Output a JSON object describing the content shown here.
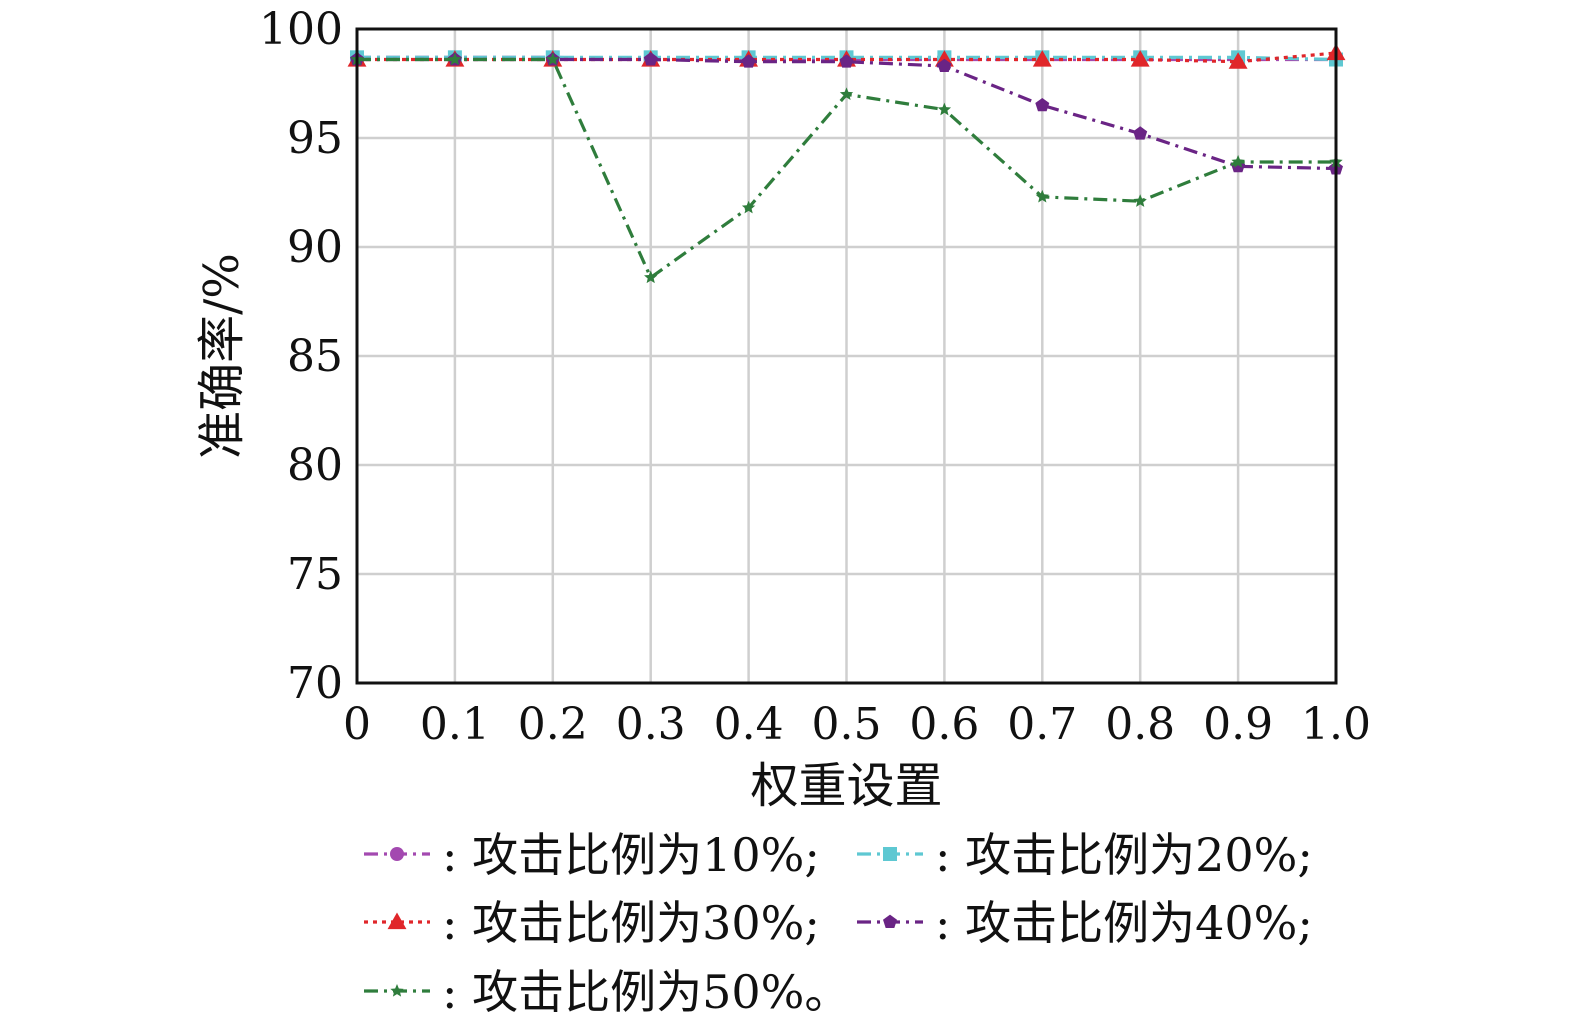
{
  "chart_data": {
    "type": "line",
    "title": "",
    "xlabel": "权重设置",
    "ylabel": "准确率/%",
    "x": [
      0,
      0.1,
      0.2,
      0.3,
      0.4,
      0.5,
      0.6,
      0.7,
      0.8,
      0.9,
      1.0
    ],
    "x_tick_labels": [
      "0",
      "0.1",
      "0.2",
      "0.3",
      "0.4",
      "0.5",
      "0.6",
      "0.7",
      "0.8",
      "0.9",
      "1.0"
    ],
    "y_ticks": [
      70,
      75,
      80,
      85,
      90,
      95,
      100
    ],
    "y_tick_labels": [
      "70",
      "75",
      "80",
      "85",
      "90",
      "95",
      "100"
    ],
    "xlim": [
      0,
      1.0
    ],
    "ylim": [
      70,
      100
    ],
    "grid": true,
    "legend_position": "bottom",
    "series": [
      {
        "name": ": 攻击比例为10%;",
        "color": "#a349b0",
        "dash": "dash-dot",
        "marker": "circle",
        "values": [
          98.7,
          98.7,
          98.7,
          98.6,
          98.6,
          98.6,
          98.6,
          98.6,
          98.6,
          98.6,
          98.6
        ]
      },
      {
        "name": ": 攻击比例为20%;",
        "color": "#5ec8d2",
        "dash": "dash-dot",
        "marker": "square",
        "values": [
          98.7,
          98.7,
          98.7,
          98.7,
          98.7,
          98.7,
          98.7,
          98.7,
          98.7,
          98.7,
          98.6
        ]
      },
      {
        "name": ": 攻击比例为30%;",
        "color": "#e0262a",
        "dash": "dotted",
        "marker": "triangle",
        "values": [
          98.6,
          98.6,
          98.6,
          98.6,
          98.6,
          98.6,
          98.6,
          98.6,
          98.6,
          98.5,
          98.9
        ]
      },
      {
        "name": ": 攻击比例为40%;",
        "color": "#6a2485",
        "dash": "dash-dot",
        "marker": "pentagon",
        "values": [
          98.6,
          98.6,
          98.6,
          98.6,
          98.5,
          98.5,
          98.3,
          96.5,
          95.2,
          93.7,
          93.6
        ]
      },
      {
        "name": ": 攻击比例为50%。",
        "color": "#2f7d3c",
        "dash": "dash-dot",
        "marker": "star",
        "values": [
          98.6,
          98.6,
          98.6,
          88.6,
          91.8,
          97.0,
          96.3,
          92.3,
          92.1,
          93.9,
          93.9
        ]
      }
    ]
  }
}
